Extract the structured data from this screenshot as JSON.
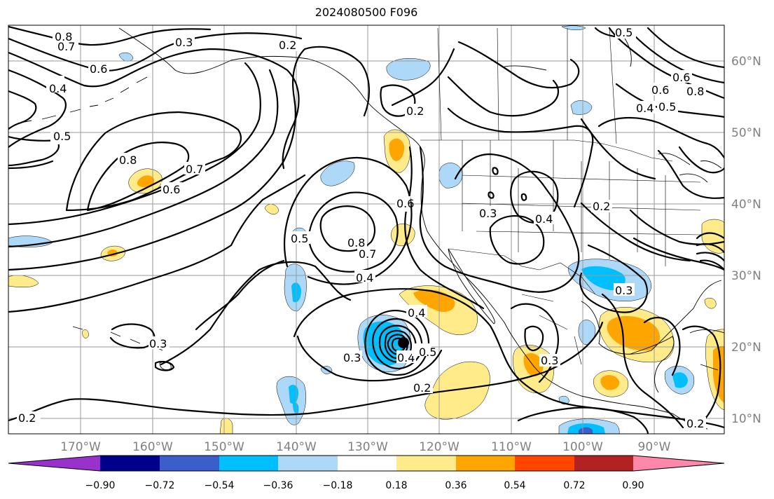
{
  "title": "2024080500 F096",
  "map": {
    "longitude_labels": [
      "170°W",
      "160°W",
      "150°W",
      "140°W",
      "130°W",
      "120°W",
      "110°W",
      "100°W",
      "90°W"
    ],
    "latitude_labels": [
      "60°N",
      "50°N",
      "40°N",
      "30°N",
      "20°N",
      "10°N"
    ],
    "contour_labels": [
      "0.8",
      "0.7",
      "0.6",
      "0.3",
      "0.2",
      "0.4",
      "0.5",
      "0.8",
      "0.7",
      "0.6",
      "0.5",
      "0.4",
      "0.3",
      "0.2",
      "0.4",
      "0.3",
      "0.2",
      "0.4",
      "0.5",
      "0.6",
      "0.7",
      "0.8",
      "0.5",
      "0.6",
      "0.4",
      "0.3",
      "0.4",
      "0.2",
      "0.3",
      "0.5",
      "0.6",
      "0.8",
      "0.2",
      "0.3",
      "0.2"
    ],
    "low_center_marker": "dot"
  },
  "colorbar": {
    "colors": [
      "#9932cc",
      "#00008b",
      "#3a5fcd",
      "#00bfff",
      "#add8f7",
      "#ffffff",
      "#ffeb8a",
      "#ffa500",
      "#ff4500",
      "#b22222",
      "#ff88aa"
    ],
    "tick_labels": [
      "−0.90",
      "−0.72",
      "−0.54",
      "−0.36",
      "−0.18",
      "0.18",
      "0.36",
      "0.54",
      "0.72",
      "0.90"
    ]
  }
}
